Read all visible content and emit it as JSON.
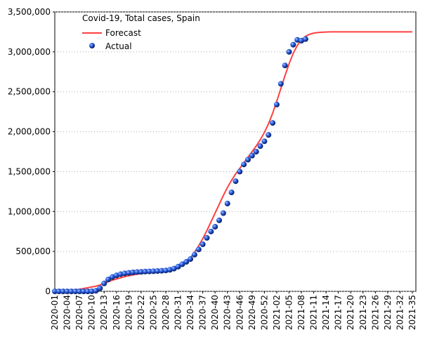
{
  "chart_data": {
    "type": "line",
    "title": "Covid-19, Total cases, Spain",
    "categories": [
      "2020-01",
      null,
      null,
      "2020-04",
      null,
      null,
      "2020-07",
      null,
      null,
      "2020-10",
      null,
      null,
      "2020-13",
      null,
      null,
      "2020-16",
      null,
      null,
      "2020-19",
      null,
      null,
      "2020-22",
      null,
      null,
      "2020-25",
      null,
      null,
      "2020-28",
      null,
      null,
      "2020-31",
      null,
      null,
      "2020-34",
      null,
      null,
      "2020-37",
      null,
      null,
      "2020-40",
      null,
      null,
      "2020-43",
      null,
      null,
      "2020-46",
      null,
      null,
      "2020-49",
      null,
      null,
      "2020-52",
      null,
      null,
      "2021-02",
      null,
      null,
      "2021-05",
      null,
      null,
      "2021-08",
      null,
      null,
      "2021-11",
      null,
      null,
      "2021-14",
      null,
      null,
      "2021-17",
      null,
      null,
      "2021-20",
      null,
      null,
      "2021-23",
      null,
      null,
      "2021-26",
      null,
      null,
      "2021-29",
      null,
      null,
      "2021-32",
      null,
      null,
      "2021-35"
    ],
    "series": [
      {
        "name": "Forecast",
        "color": "#ff4040",
        "style": "line",
        "values": [
          0,
          2000,
          5000,
          10000,
          15000,
          20000,
          27000,
          35000,
          45000,
          55000,
          65000,
          80000,
          100000,
          120000,
          140000,
          155000,
          170000,
          185000,
          195000,
          205000,
          215000,
          222000,
          228000,
          233000,
          238000,
          243000,
          248000,
          255000,
          265000,
          280000,
          300000,
          330000,
          370000,
          420000,
          490000,
          570000,
          660000,
          760000,
          870000,
          980000,
          1090000,
          1200000,
          1300000,
          1390000,
          1470000,
          1540000,
          1610000,
          1680000,
          1750000,
          1820000,
          1900000,
          1990000,
          2100000,
          2230000,
          2380000,
          2540000,
          2700000,
          2850000,
          2980000,
          3080000,
          3150000,
          3195000,
          3220000,
          3235000,
          3242000,
          3246000,
          3248000,
          3250000,
          3250000,
          3250000,
          3250000,
          3250000,
          3250000,
          3250000,
          3250000,
          3250000,
          3250000,
          3250000,
          3250000,
          3250000,
          3250000,
          3250000,
          3250000,
          3250000,
          3250000,
          3250000,
          3250000,
          3250000
        ]
      },
      {
        "name": "Actual",
        "color": "#1f4fd0",
        "style": "marker",
        "values": [
          0,
          0,
          0,
          0,
          0,
          0,
          0,
          0,
          45,
          600,
          8000,
          40000,
          100000,
          150000,
          180000,
          200000,
          215000,
          225000,
          232000,
          238000,
          242000,
          245000,
          248000,
          250000,
          252000,
          255000,
          258000,
          262000,
          270000,
          285000,
          310000,
          340000,
          370000,
          405000,
          460000,
          525000,
          590000,
          670000,
          750000,
          810000,
          890000,
          980000,
          1100000,
          1240000,
          1380000,
          1500000,
          1590000,
          1650000,
          1700000,
          1750000,
          1820000,
          1880000,
          1960000,
          2110000,
          2340000,
          2600000,
          2830000,
          3000000,
          3090000,
          3150000,
          3140000,
          3160000,
          null,
          null,
          null,
          null,
          null,
          null,
          null,
          null,
          null,
          null,
          null,
          null,
          null,
          null,
          null,
          null,
          null,
          null,
          null,
          null,
          null,
          null,
          null,
          null,
          null,
          null
        ]
      }
    ],
    "ylim": [
      0,
      3500000
    ],
    "yticks": [
      {
        "value": 0,
        "label": "0"
      },
      {
        "value": 500000,
        "label": "500,000"
      },
      {
        "value": 1000000,
        "label": "1,000,000"
      },
      {
        "value": 1500000,
        "label": "1,500,000"
      },
      {
        "value": 2000000,
        "label": "2,000,000"
      },
      {
        "value": 2500000,
        "label": "2,500,000"
      },
      {
        "value": 3000000,
        "label": "3,000,000"
      },
      {
        "value": 3500000,
        "label": "3,500,000"
      }
    ],
    "grid": true
  }
}
